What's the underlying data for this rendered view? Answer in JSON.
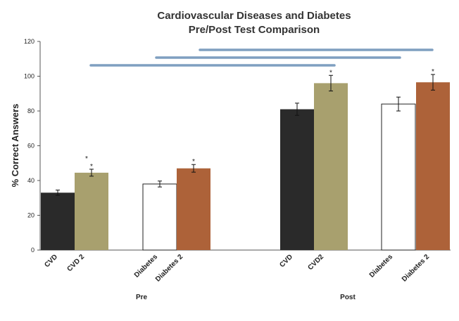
{
  "chart_data": {
    "type": "bar",
    "title": "Cardiovascular Diseases and Diabetes",
    "subtitle": "Pre/Post Test Comparison",
    "ylabel": "% Correct Answers",
    "xlabel": "",
    "ylim": [
      0,
      120
    ],
    "yticks": [
      0,
      20,
      40,
      60,
      80,
      100,
      120
    ],
    "grid": false,
    "groups": [
      {
        "name": "Pre",
        "bars": [
          {
            "label": "CVD",
            "value": 33,
            "error": 1.5,
            "color": "#2a2a2a",
            "stars": 0
          },
          {
            "label": "CVD 2",
            "value": 44.5,
            "error": 2,
            "color": "#a8a06e",
            "stars": 2
          },
          {
            "label": "Diabetes",
            "value": 38,
            "error": 1.7,
            "color": "#ffffff",
            "stars": 0
          },
          {
            "label": "Diabetes 2",
            "value": 47,
            "error": 2.2,
            "color": "#ad6239",
            "stars": 1
          }
        ]
      },
      {
        "name": "Post",
        "bars": [
          {
            "label": "CVD",
            "value": 81,
            "error": 3.5,
            "color": "#2a2a2a",
            "stars": 0
          },
          {
            "label": "CVD2",
            "value": 96,
            "error": 4.5,
            "color": "#a8a06e",
            "stars": 1
          },
          {
            "label": "Diabetes",
            "value": 84,
            "error": 4,
            "color": "#ffffff",
            "stars": 0
          },
          {
            "label": "Diabetes 2",
            "value": 96.5,
            "error": 4.5,
            "color": "#ad6239",
            "stars": 1
          }
        ]
      }
    ],
    "comparison_lines_color": "#7f9fc0",
    "star_symbol": "*"
  }
}
